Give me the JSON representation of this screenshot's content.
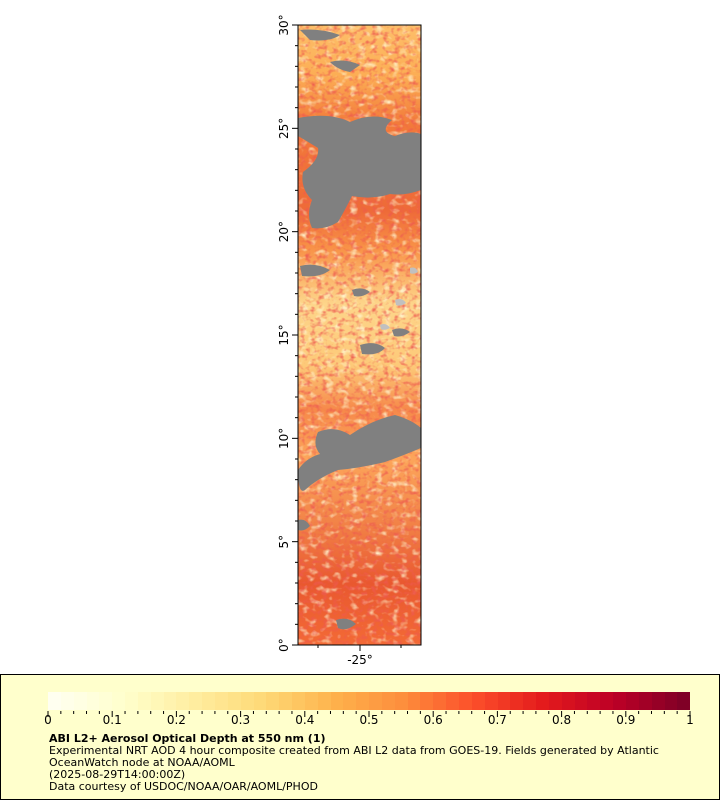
{
  "map": {
    "lat_labels": [
      "0°",
      "5°",
      "10°",
      "15°",
      "20°",
      "25°",
      "30°"
    ],
    "lon_labels": [
      "-25°"
    ],
    "lat_range": [
      0,
      30
    ],
    "colors": {
      "no_data": "#808080",
      "land_gap": "#c0c0c0",
      "background": "#ffffff"
    }
  },
  "legend": {
    "scale_labels": [
      "0",
      "0.1",
      "0.2",
      "0.3",
      "0.4",
      "0.5",
      "0.6",
      "0.7",
      "0.8",
      "0.9",
      "1"
    ],
    "scale_range": [
      0,
      1
    ],
    "colormap": [
      "#fffff0",
      "#ffffcc",
      "#ffeda0",
      "#fed976",
      "#feb24c",
      "#fd8d3c",
      "#fc4e2a",
      "#e31a1c",
      "#bd0026",
      "#800026"
    ],
    "title": "ABI L2+ Aerosol Optical Depth at 550 nm (1)",
    "line1": "Experimental NRT AOD 4 hour composite created from ABI L2 data from GOES-19. Fields generated by Atlantic",
    "line2": "OceanWatch node at NOAA/AOML",
    "line3": "(2025-08-29T14:00:00Z)",
    "line4": "Data courtesy of USDOC/NOAA/OAR/AOML/PHOD"
  }
}
